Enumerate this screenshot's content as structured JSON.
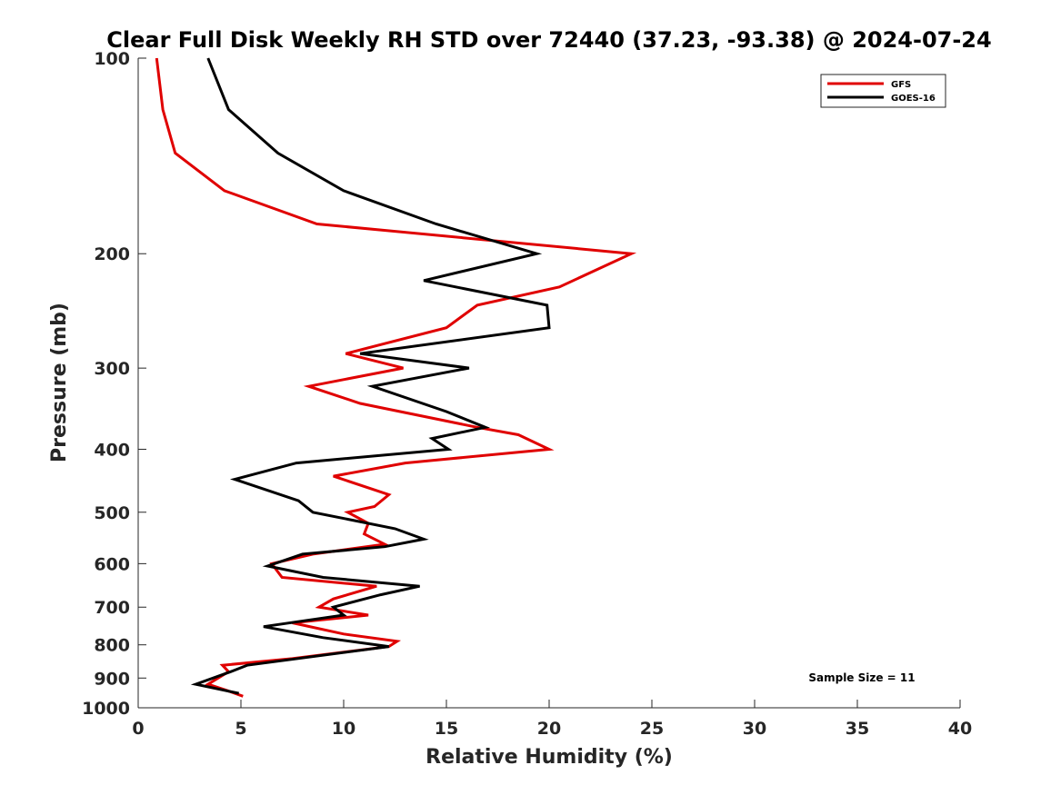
{
  "chart_data": {
    "type": "line",
    "title": "Clear Full Disk Weekly RH STD over 72440 (37.23, -93.38) @ 2024-07-24",
    "xlabel": "Relative Humidity (%)",
    "ylabel": "Pressure (mb)",
    "xlim": [
      0,
      40
    ],
    "ylim": [
      100,
      1000
    ],
    "y_scale": "log",
    "y_reversed": true,
    "xticks": [
      0,
      5,
      10,
      15,
      20,
      25,
      30,
      35,
      40
    ],
    "yticks": [
      100,
      200,
      300,
      400,
      500,
      600,
      700,
      800,
      900,
      1000
    ],
    "grid": false,
    "legend_position": "top-right",
    "annotation": "Sample Size = 11",
    "series": [
      {
        "name": "GFS",
        "color": "#e00000",
        "points": [
          [
            0.9,
            100
          ],
          [
            1.2,
            120
          ],
          [
            1.8,
            140
          ],
          [
            4.2,
            160
          ],
          [
            8.7,
            180
          ],
          [
            24.0,
            200
          ],
          [
            20.5,
            225
          ],
          [
            16.5,
            240
          ],
          [
            15.0,
            260
          ],
          [
            10.1,
            285
          ],
          [
            12.9,
            300
          ],
          [
            8.3,
            320
          ],
          [
            10.8,
            340
          ],
          [
            16.5,
            370
          ],
          [
            18.5,
            380
          ],
          [
            20.0,
            400
          ],
          [
            13.0,
            420
          ],
          [
            9.5,
            440
          ],
          [
            12.2,
            470
          ],
          [
            11.5,
            490
          ],
          [
            10.2,
            500
          ],
          [
            11.2,
            520
          ],
          [
            11.0,
            540
          ],
          [
            12.0,
            560
          ],
          [
            8.5,
            580
          ],
          [
            6.5,
            600
          ],
          [
            7.0,
            630
          ],
          [
            11.6,
            650
          ],
          [
            9.5,
            680
          ],
          [
            8.8,
            700
          ],
          [
            11.2,
            720
          ],
          [
            7.5,
            740
          ],
          [
            10.0,
            770
          ],
          [
            12.6,
            790
          ],
          [
            12.2,
            805
          ],
          [
            7.5,
            840
          ],
          [
            4.1,
            860
          ],
          [
            4.4,
            880
          ],
          [
            3.4,
            920
          ],
          [
            4.3,
            940
          ],
          [
            5.1,
            960
          ]
        ]
      },
      {
        "name": "GOES-16",
        "color": "#000000",
        "points": [
          [
            3.4,
            100
          ],
          [
            4.4,
            120
          ],
          [
            6.8,
            140
          ],
          [
            10.0,
            160
          ],
          [
            14.5,
            180
          ],
          [
            19.4,
            200
          ],
          [
            13.9,
            220
          ],
          [
            19.9,
            240
          ],
          [
            20.0,
            260
          ],
          [
            10.8,
            285
          ],
          [
            16.1,
            300
          ],
          [
            11.4,
            320
          ],
          [
            15.0,
            350
          ],
          [
            16.9,
            370
          ],
          [
            14.3,
            385
          ],
          [
            15.1,
            400
          ],
          [
            7.7,
            420
          ],
          [
            4.7,
            445
          ],
          [
            7.8,
            480
          ],
          [
            8.5,
            500
          ],
          [
            12.5,
            530
          ],
          [
            13.9,
            550
          ],
          [
            12.0,
            565
          ],
          [
            8.0,
            580
          ],
          [
            6.3,
            605
          ],
          [
            9.0,
            630
          ],
          [
            13.7,
            650
          ],
          [
            11.8,
            670
          ],
          [
            9.5,
            700
          ],
          [
            10.0,
            720
          ],
          [
            6.1,
            750
          ],
          [
            9.0,
            780
          ],
          [
            12.2,
            805
          ],
          [
            5.3,
            860
          ],
          [
            4.5,
            880
          ],
          [
            2.8,
            920
          ],
          [
            4.9,
            950
          ]
        ]
      }
    ]
  }
}
